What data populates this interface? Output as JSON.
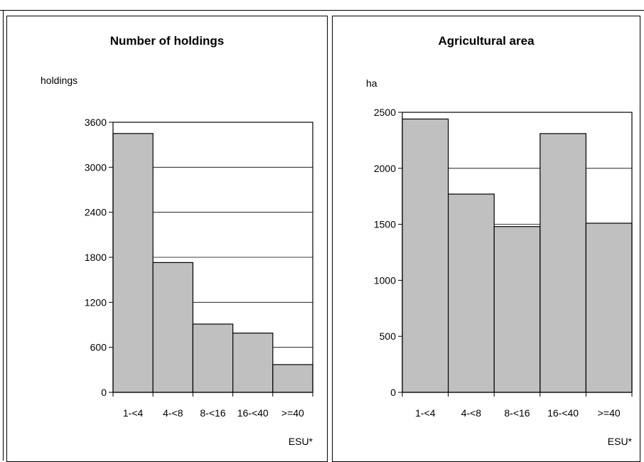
{
  "chart_data": [
    {
      "type": "bar",
      "title": "Number of holdings",
      "ylabel": "holdings",
      "xlabel": "ESU*",
      "categories": [
        "1-<4",
        "4-<8",
        "8-<16",
        "16-<40",
        ">=40"
      ],
      "values": [
        3450,
        1730,
        910,
        790,
        370
      ],
      "ylim": [
        0,
        3600
      ],
      "yticks": [
        0,
        600,
        1200,
        1800,
        2400,
        3000,
        3600
      ],
      "ytick_labels": [
        "0",
        "600",
        "1200",
        "1800",
        "2400",
        "3000",
        "3600"
      ],
      "grid": true,
      "bar_color": "#c0c0c0"
    },
    {
      "type": "bar",
      "title": "Agricultural area",
      "ylabel": "ha",
      "xlabel": "ESU*",
      "categories": [
        "1-<4",
        "4-<8",
        "8-<16",
        "16-<40",
        ">=40"
      ],
      "values": [
        2440,
        1770,
        1480,
        2310,
        1510
      ],
      "ylim": [
        0,
        2500
      ],
      "yticks": [
        0,
        500,
        1000,
        1500,
        2000,
        2500
      ],
      "ytick_labels": [
        "0",
        "500",
        "1000",
        "1500",
        "2000",
        "2500"
      ],
      "grid": true,
      "bar_color": "#c0c0c0"
    }
  ]
}
